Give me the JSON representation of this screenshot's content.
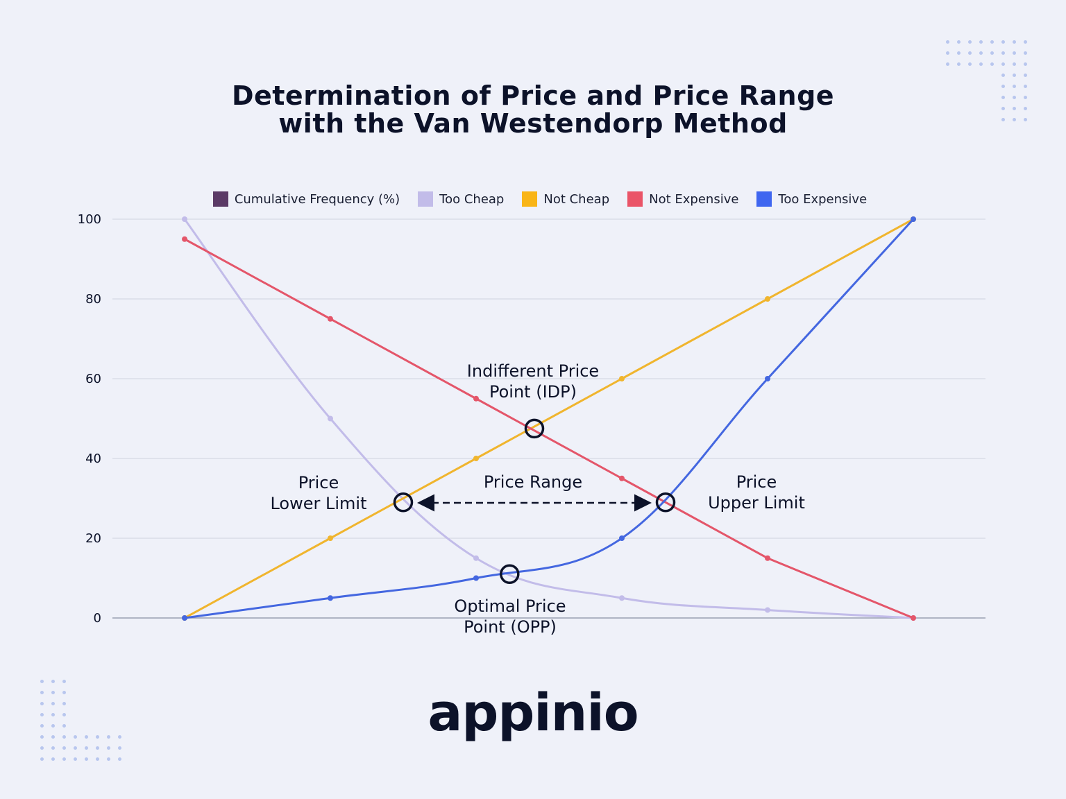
{
  "title_line1": "Determination of Price and Price Range",
  "title_line2": "with the Van Westendorp Method",
  "legend": [
    {
      "label": "Cumulative Frequency (%)",
      "color": "#5b3a66"
    },
    {
      "label": "Too Cheap",
      "color": "#c2bce9"
    },
    {
      "label": "Not Cheap",
      "color": "#f9b517"
    },
    {
      "label": "Not Expensive",
      "color": "#ea5468"
    },
    {
      "label": "Too Expensive",
      "color": "#3f66f0"
    }
  ],
  "annotations": {
    "idp_line1": "Indifferent Price",
    "idp_line2": "Point (IDP)",
    "range": "Price Range",
    "lower_line1": "Price",
    "lower_line2": "Lower Limit",
    "upper_line1": "Price",
    "upper_line2": "Upper Limit",
    "opp_line1": "Optimal Price",
    "opp_line2": "Point (OPP)"
  },
  "logo_text": "appinio",
  "chart_data": {
    "type": "line",
    "title": "Determination of Price and Price Range with the Van Westendorp Method",
    "x": [
      0,
      1,
      2,
      3,
      4,
      5
    ],
    "ylim": [
      0,
      100
    ],
    "yticks": [
      0,
      20,
      40,
      60,
      80,
      100
    ],
    "grid": true,
    "legend_position": "top",
    "series": [
      {
        "name": "Too Cheap",
        "color": "#c2bce9",
        "values": [
          100,
          50,
          15,
          5,
          2,
          0
        ],
        "smooth": true
      },
      {
        "name": "Not Cheap",
        "color": "#f0b52e",
        "values": [
          0,
          20,
          40,
          60,
          80,
          100
        ],
        "smooth": false
      },
      {
        "name": "Not Expensive",
        "color": "#e4566a",
        "values": [
          95,
          75,
          55,
          35,
          15,
          0
        ],
        "smooth": false
      },
      {
        "name": "Too Expensive",
        "color": "#4467e0",
        "values": [
          0,
          5,
          10,
          20,
          60,
          100
        ],
        "smooth": true
      }
    ],
    "marked_points": [
      {
        "name": "Indifferent Price Point (IDP)",
        "x": 2.4,
        "y": 47.5
      },
      {
        "name": "Price Lower Limit",
        "x": 1.5,
        "y": 29
      },
      {
        "name": "Price Upper Limit",
        "x": 3.3,
        "y": 29
      },
      {
        "name": "Optimal Price Point (OPP)",
        "x": 2.23,
        "y": 11
      }
    ]
  }
}
